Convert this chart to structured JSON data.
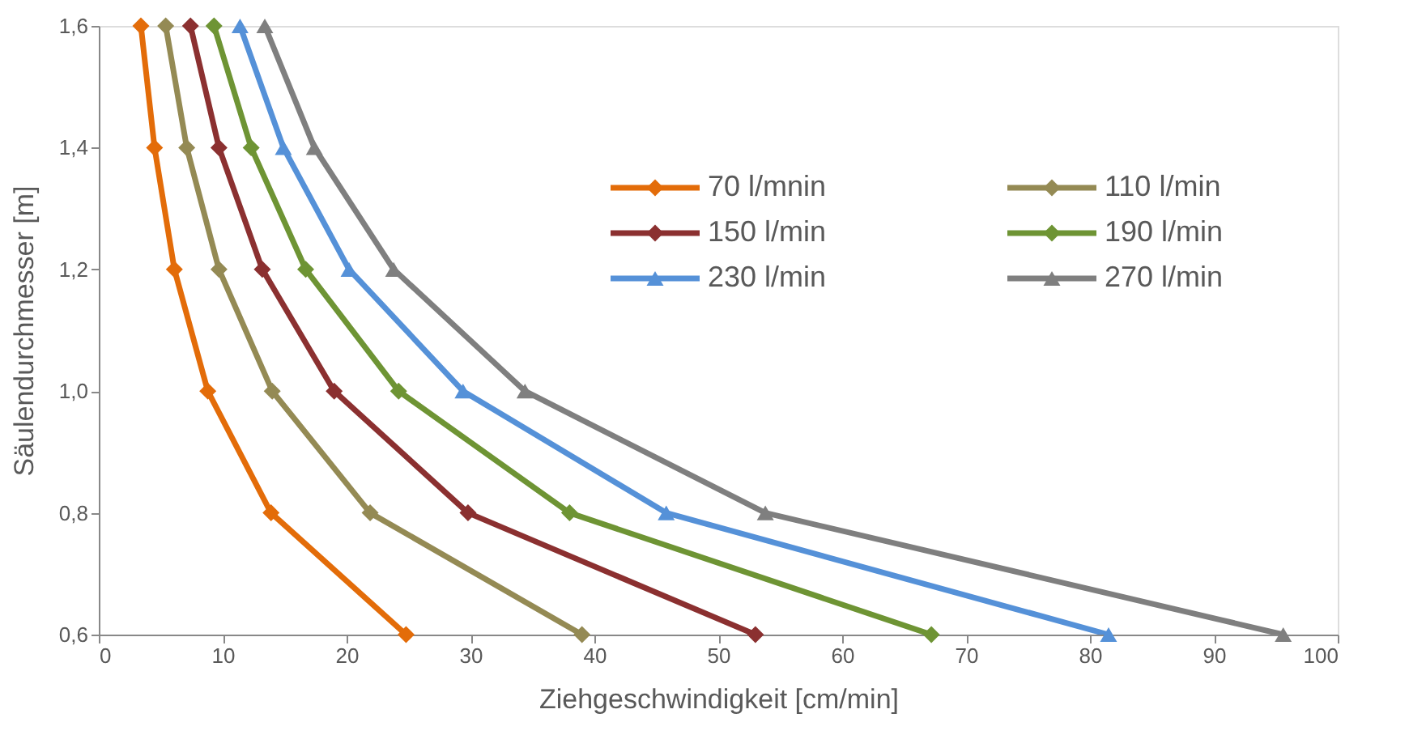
{
  "chart_data": {
    "type": "line",
    "xlabel": "Ziehgeschwindigkeit [cm/min]",
    "ylabel": "Säulendurchmesser [m]",
    "xlim": [
      0,
      100
    ],
    "xticks": [
      0,
      10,
      20,
      30,
      40,
      50,
      60,
      70,
      80,
      90,
      100
    ],
    "ylim": [
      0.6,
      1.6
    ],
    "yticks": [
      {
        "value": 0.6,
        "label": "0,6"
      },
      {
        "value": 0.8,
        "label": "0,8"
      },
      {
        "value": 1.0,
        "label": "1,0"
      },
      {
        "value": 1.2,
        "label": "1,2"
      },
      {
        "value": 1.4,
        "label": "1,4"
      },
      {
        "value": 1.6,
        "label": "1,6"
      }
    ],
    "grid": false,
    "legend": "top right",
    "series": [
      {
        "name": "70 l/mnin",
        "color": "#e36c09",
        "marker": "diamond",
        "x": [
          3.4,
          4.5,
          6.1,
          8.8,
          13.9,
          24.8
        ],
        "values": [
          1.6,
          1.4,
          1.2,
          1.0,
          0.8,
          0.6
        ]
      },
      {
        "name": "110 l/min",
        "color": "#948a54",
        "marker": "diamond",
        "x": [
          5.4,
          7.1,
          9.7,
          14.0,
          21.9,
          39.0
        ],
        "values": [
          1.6,
          1.4,
          1.2,
          1.0,
          0.8,
          0.6
        ]
      },
      {
        "name": "150 l/min",
        "color": "#8b3030",
        "marker": "diamond",
        "x": [
          7.4,
          9.7,
          13.2,
          19.0,
          29.8,
          53.0
        ],
        "values": [
          1.6,
          1.4,
          1.2,
          1.0,
          0.8,
          0.6
        ]
      },
      {
        "name": "190 l/min",
        "color": "#6e9434",
        "marker": "diamond",
        "x": [
          9.3,
          12.3,
          16.7,
          24.2,
          38.0,
          67.2
        ],
        "values": [
          1.6,
          1.4,
          1.2,
          1.0,
          0.8,
          0.6
        ]
      },
      {
        "name": "230 l/min",
        "color": "#5591d8",
        "marker": "triangle",
        "x": [
          11.4,
          14.9,
          20.2,
          29.4,
          45.8,
          81.5
        ],
        "values": [
          1.6,
          1.4,
          1.2,
          1.0,
          0.8,
          0.6
        ]
      },
      {
        "name": "270 l/min",
        "color": "#7f7f7f",
        "marker": "triangle",
        "x": [
          13.4,
          17.4,
          23.8,
          34.4,
          53.8,
          95.6
        ],
        "values": [
          1.6,
          1.4,
          1.2,
          1.0,
          0.8,
          0.6
        ]
      }
    ]
  }
}
